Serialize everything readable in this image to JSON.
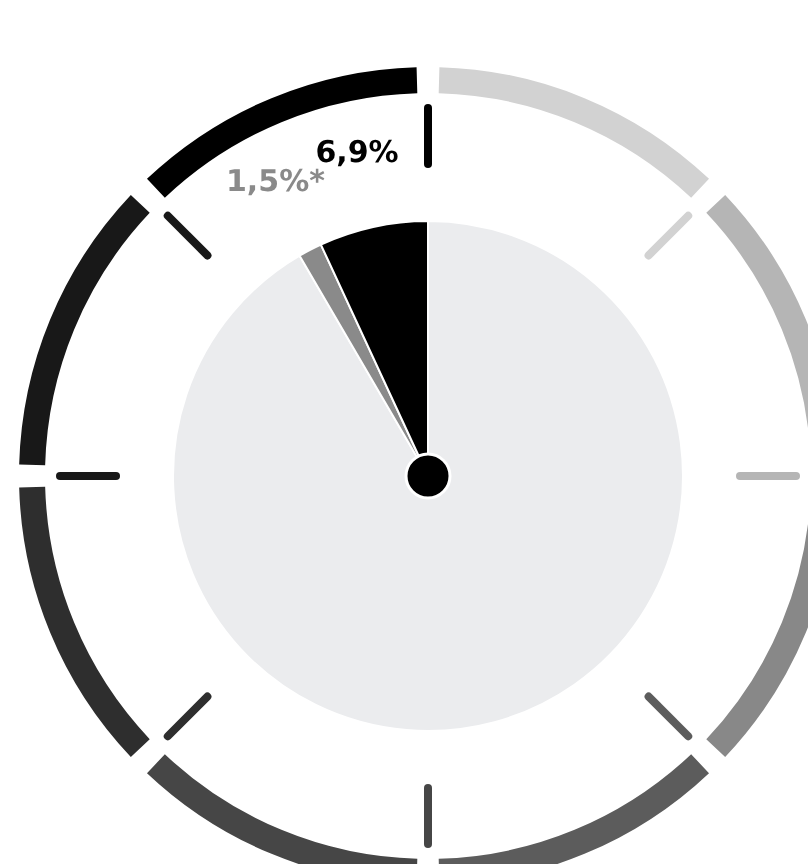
{
  "chart_data": {
    "type": "pie",
    "categories": [
      null,
      null,
      null
    ],
    "values": [
      91.6,
      1.5,
      6.9
    ],
    "colors": [
      "#ebecee",
      "#8a8a8a",
      "#000000"
    ],
    "value_labels": [
      null,
      "1,5%*",
      "6,9%"
    ],
    "legend": false
  }
}
